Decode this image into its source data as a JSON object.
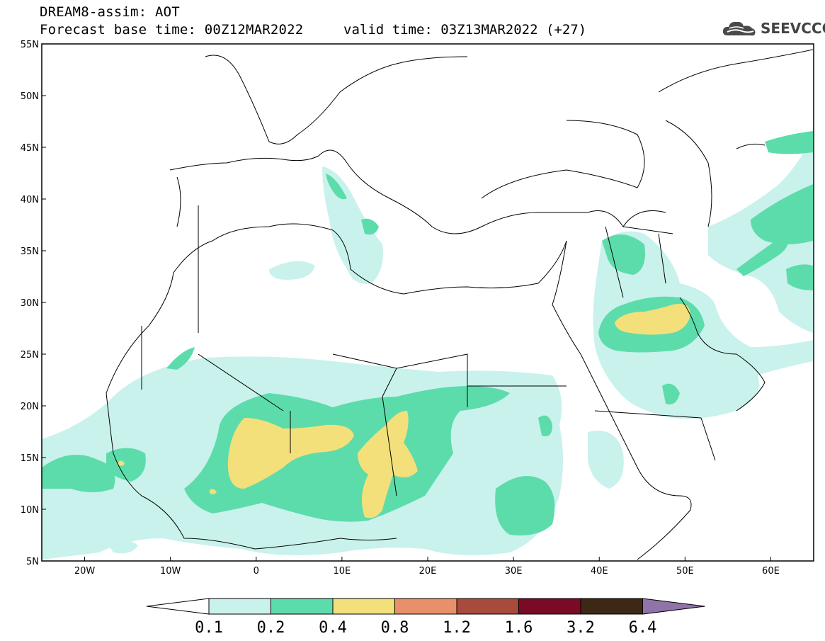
{
  "header": {
    "title": "DREAM8-assim: AOT",
    "base_time": "Forecast base time: 00Z12MAR2022",
    "valid_time": "valid time: 03Z13MAR2022 (+27)"
  },
  "logo": {
    "text": "SEEVCCC",
    "icon": "cloud-icon"
  },
  "map": {
    "lon_range": [
      -25,
      65
    ],
    "lat_range": [
      5,
      55
    ],
    "x_ticks": [
      "20W",
      "10W",
      "0",
      "10E",
      "20E",
      "30E",
      "40E",
      "50E",
      "60E"
    ],
    "y_ticks": [
      "5N",
      "10N",
      "15N",
      "20N",
      "25N",
      "30N",
      "35N",
      "40N",
      "45N",
      "50N",
      "55N"
    ]
  },
  "colorbar": {
    "labels": [
      "0.1",
      "0.2",
      "0.4",
      "0.8",
      "1.2",
      "1.6",
      "3.2",
      "6.4"
    ],
    "colors": [
      "#c9f2ec",
      "#5ddcab",
      "#f3e07a",
      "#e8906a",
      "#a84a3c",
      "#7a0a26",
      "#3c2814",
      "#9073a8"
    ]
  },
  "colors": {
    "low": "#c9f2ec",
    "mid": "#5ddcab",
    "high": "#f3e07a"
  }
}
